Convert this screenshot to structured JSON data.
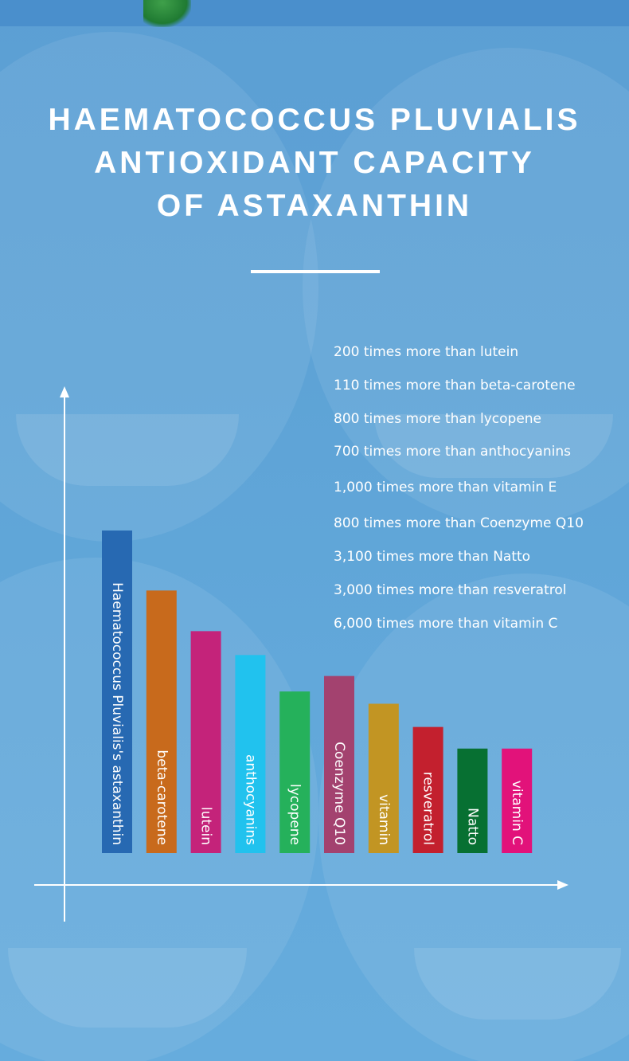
{
  "title_lines": [
    "HAEMATOCOCCUS PLUVIALIS",
    "ANTIOXIDANT CAPACITY",
    "OF ASTAXANTHIN"
  ],
  "facts": [
    "200 times more than lutein",
    "110 times more than beta-carotene",
    "800 times more than lycopene",
    "700 times more than anthocyanins",
    "1,000 times more than vitamin E",
    "800 times more than Coenzyme Q10",
    "3,100 times more than Natto",
    "3,000 times more than resveratrol",
    "6,000 times more than vitamin C"
  ],
  "chart_data": {
    "type": "bar",
    "orientation": "vertical",
    "categories": [
      "Haematococcus Pluvialis's astaxanthin",
      "beta-carotene",
      "lutein",
      "anthocyanins",
      "lycopene",
      "Coenzyme Q10",
      "vitamin",
      "resveratrol",
      "Natto",
      "vitamin C"
    ],
    "values": [
      100,
      81.4,
      68.8,
      61.4,
      50.1,
      54.9,
      46.3,
      39.1,
      32.4,
      32.4
    ],
    "colors": [
      "#2769b2",
      "#c86a1c",
      "#c4237a",
      "#21c2ee",
      "#25b15b",
      "#a3426f",
      "#c29523",
      "#c3202e",
      "#077032",
      "#e2127a"
    ],
    "ylim": [
      0,
      100
    ],
    "grid": false,
    "axis_color": "#ffffff"
  }
}
